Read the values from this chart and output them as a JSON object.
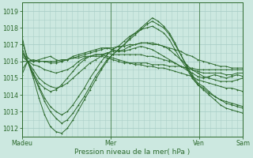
{
  "xlabel": "Pression niveau de la mer( hPa )",
  "bg_color": "#cce8e0",
  "line_color": "#2d6a2d",
  "grid_color": "#aacfc8",
  "tick_color": "#2d6a2d",
  "text_color": "#2d6a2d",
  "ylim": [
    1011.5,
    1019.5
  ],
  "xlim": [
    0,
    100
  ],
  "yticks": [
    1012,
    1013,
    1014,
    1015,
    1016,
    1017,
    1018,
    1019
  ],
  "xtick_positions": [
    0,
    40,
    80,
    100
  ],
  "xtick_labels": [
    "Madeu",
    "Mer",
    "Ven",
    "Sam"
  ],
  "series": [
    [
      1017.2,
      1016.2,
      1016.0,
      1016.1,
      1016.2,
      1016.3,
      1016.1,
      1016.0,
      1016.1,
      1016.3,
      1016.4,
      1016.5,
      1016.6,
      1016.7,
      1016.8,
      1016.8,
      1016.7,
      1016.6,
      1016.6,
      1016.7,
      1016.8,
      1016.9,
      1016.8,
      1016.7,
      1016.5,
      1016.3,
      1016.1,
      1015.9,
      1015.7,
      1015.5,
      1015.3,
      1015.1,
      1015.0,
      1015.1,
      1015.2,
      1015.1,
      1015.0,
      1015.1,
      1015.2,
      1015.1
    ],
    [
      1016.8,
      1016.0,
      1015.2,
      1014.4,
      1013.6,
      1013.0,
      1012.6,
      1012.3,
      1012.5,
      1012.9,
      1013.4,
      1013.9,
      1014.5,
      1015.1,
      1015.6,
      1016.1,
      1016.4,
      1016.7,
      1017.0,
      1017.3,
      1017.6,
      1017.9,
      1018.2,
      1018.4,
      1018.2,
      1018.0,
      1017.6,
      1017.0,
      1016.4,
      1015.8,
      1015.2,
      1014.7,
      1014.5,
      1014.2,
      1013.9,
      1013.7,
      1013.5,
      1013.4,
      1013.3,
      1013.2
    ],
    [
      1016.5,
      1016.0,
      1015.0,
      1013.8,
      1012.8,
      1012.1,
      1011.8,
      1011.7,
      1012.0,
      1012.5,
      1013.1,
      1013.7,
      1014.3,
      1014.9,
      1015.5,
      1016.0,
      1016.4,
      1016.7,
      1017.0,
      1017.4,
      1017.7,
      1018.0,
      1018.3,
      1018.6,
      1018.4,
      1018.1,
      1017.7,
      1017.1,
      1016.4,
      1015.7,
      1015.1,
      1014.6,
      1014.3,
      1014.0,
      1013.7,
      1013.4,
      1013.2,
      1013.1,
      1013.0,
      1012.9
    ],
    [
      1016.3,
      1016.0,
      1015.2,
      1014.5,
      1013.8,
      1013.3,
      1013.0,
      1012.8,
      1013.0,
      1013.4,
      1013.9,
      1014.4,
      1015.0,
      1015.5,
      1016.0,
      1016.4,
      1016.7,
      1016.9,
      1017.2,
      1017.5,
      1017.7,
      1017.9,
      1018.0,
      1018.1,
      1017.9,
      1017.7,
      1017.3,
      1016.7,
      1016.1,
      1015.6,
      1015.0,
      1014.6,
      1014.4,
      1014.1,
      1013.9,
      1013.7,
      1013.6,
      1013.5,
      1013.4,
      1013.3
    ],
    [
      1016.0,
      1016.0,
      1015.5,
      1015.0,
      1014.7,
      1014.5,
      1014.4,
      1014.5,
      1014.7,
      1015.0,
      1015.3,
      1015.6,
      1015.9,
      1016.1,
      1016.3,
      1016.5,
      1016.6,
      1016.6,
      1016.7,
      1016.9,
      1017.0,
      1017.1,
      1017.1,
      1017.1,
      1017.0,
      1016.9,
      1016.7,
      1016.4,
      1016.1,
      1015.8,
      1015.5,
      1015.3,
      1015.1,
      1015.0,
      1014.9,
      1014.8,
      1014.8,
      1014.8,
      1014.9,
      1015.0
    ],
    [
      1015.5,
      1016.0,
      1015.8,
      1015.7,
      1015.5,
      1015.4,
      1015.3,
      1015.4,
      1015.5,
      1015.7,
      1016.0,
      1016.2,
      1016.3,
      1016.4,
      1016.4,
      1016.5,
      1016.4,
      1016.4,
      1016.4,
      1016.4,
      1016.4,
      1016.4,
      1016.3,
      1016.3,
      1016.2,
      1016.1,
      1016.0,
      1015.9,
      1015.7,
      1015.6,
      1015.5,
      1015.4,
      1015.3,
      1015.3,
      1015.3,
      1015.3,
      1015.2,
      1015.2,
      1015.3,
      1015.3
    ],
    [
      1015.2,
      1016.0,
      1016.1,
      1016.0,
      1016.0,
      1015.9,
      1015.9,
      1016.0,
      1016.1,
      1016.2,
      1016.2,
      1016.3,
      1016.3,
      1016.3,
      1016.3,
      1016.2,
      1016.1,
      1016.0,
      1015.9,
      1015.9,
      1015.9,
      1015.9,
      1015.9,
      1015.8,
      1015.8,
      1015.8,
      1015.7,
      1015.7,
      1015.7,
      1015.6,
      1015.6,
      1015.5,
      1015.5,
      1015.5,
      1015.5,
      1015.5,
      1015.5,
      1015.5,
      1015.5,
      1015.5
    ],
    [
      1016.6,
      1016.0,
      1016.0,
      1016.0,
      1016.0,
      1016.0,
      1016.0,
      1016.1,
      1016.1,
      1016.2,
      1016.3,
      1016.4,
      1016.5,
      1016.6,
      1016.7,
      1016.8,
      1016.8,
      1016.9,
      1016.9,
      1017.0,
      1017.0,
      1017.1,
      1017.1,
      1017.0,
      1017.0,
      1016.9,
      1016.8,
      1016.7,
      1016.6,
      1016.4,
      1016.3,
      1016.1,
      1016.0,
      1015.9,
      1015.8,
      1015.7,
      1015.7,
      1015.6,
      1015.6,
      1015.6
    ],
    [
      1017.5,
      1016.0,
      1015.3,
      1014.7,
      1014.4,
      1014.2,
      1014.3,
      1014.6,
      1015.0,
      1015.4,
      1015.8,
      1016.1,
      1016.3,
      1016.4,
      1016.4,
      1016.3,
      1016.2,
      1016.1,
      1016.0,
      1015.9,
      1015.8,
      1015.8,
      1015.7,
      1015.7,
      1015.6,
      1015.6,
      1015.5,
      1015.4,
      1015.3,
      1015.2,
      1015.1,
      1014.9,
      1014.8,
      1014.7,
      1014.6,
      1014.5,
      1014.4,
      1014.4,
      1014.3,
      1014.2
    ]
  ]
}
